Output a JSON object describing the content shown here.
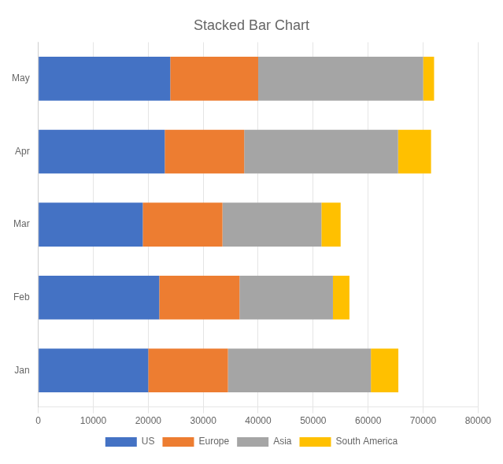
{
  "chart_data": {
    "type": "bar",
    "title": "Stacked Bar Chart",
    "orientation": "horizontal",
    "stacked": true,
    "categories": [
      "Jan",
      "Feb",
      "Mar",
      "Apr",
      "May"
    ],
    "series": [
      {
        "name": "US",
        "color": "#4472C4",
        "values": [
          20000,
          22000,
          19000,
          23000,
          24000
        ]
      },
      {
        "name": "Europe",
        "color": "#ED7D31",
        "values": [
          14500,
          14600,
          14500,
          14450,
          16000
        ]
      },
      {
        "name": "Asia",
        "color": "#A5A5A5",
        "values": [
          26000,
          17000,
          18000,
          28000,
          30000
        ]
      },
      {
        "name": "South America",
        "color": "#FFC000",
        "values": [
          5000,
          3000,
          3500,
          6000,
          2000
        ]
      }
    ],
    "xlim": [
      0,
      80000
    ],
    "xticks": [
      0,
      10000,
      20000,
      30000,
      40000,
      50000,
      60000,
      70000,
      80000
    ],
    "grid": true,
    "legend": "bottom"
  }
}
